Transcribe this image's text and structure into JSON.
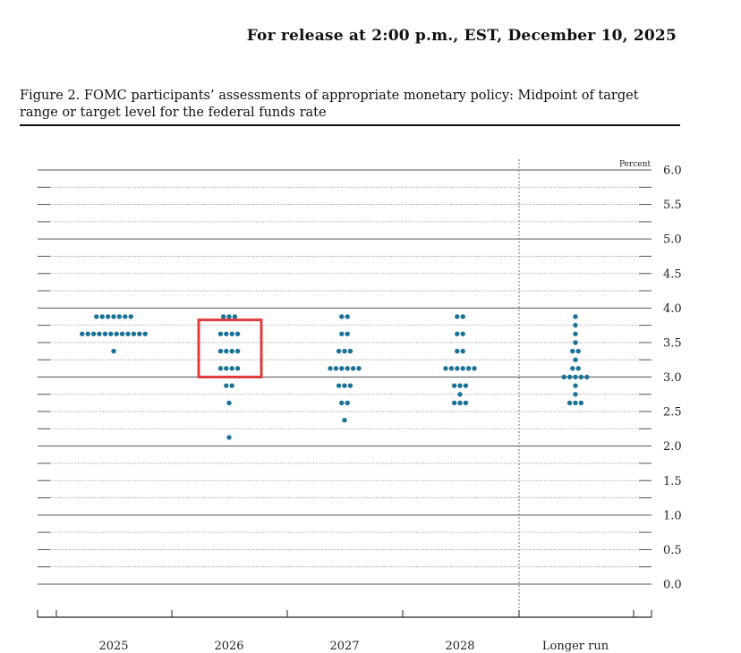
{
  "header": {
    "release": "For release at 2:00 p.m., EST, December 10, 2025"
  },
  "figure": {
    "title": "Figure 2. FOMC participants’ assessments of appropriate monetary policy: Midpoint of target range or target level for the federal funds rate"
  },
  "colors": {
    "dot": "#1a7296",
    "highlight": "#e03c3c",
    "grid": "#666666"
  },
  "chart_data": {
    "type": "scatter",
    "unit_label": "Percent",
    "ylim": [
      0,
      6.0
    ],
    "yticks": [
      "0.0",
      "0.5",
      "1.0",
      "1.5",
      "2.0",
      "2.5",
      "3.0",
      "3.5",
      "4.0",
      "4.5",
      "5.0",
      "5.5",
      "6.0"
    ],
    "categories": [
      "2025",
      "2026",
      "2027",
      "2028",
      "Longer run"
    ],
    "series": [
      {
        "points": [
          {
            "y": 3.875,
            "count": 7
          },
          {
            "y": 3.625,
            "count": 12
          },
          {
            "y": 3.375,
            "count": 1
          }
        ]
      },
      {
        "points": [
          {
            "y": 3.875,
            "count": 3
          },
          {
            "y": 3.625,
            "count": 4
          },
          {
            "y": 3.375,
            "count": 4
          },
          {
            "y": 3.125,
            "count": 4
          },
          {
            "y": 2.875,
            "count": 2
          },
          {
            "y": 2.625,
            "count": 1
          },
          {
            "y": 2.125,
            "count": 1
          }
        ]
      },
      {
        "points": [
          {
            "y": 3.875,
            "count": 2
          },
          {
            "y": 3.625,
            "count": 2
          },
          {
            "y": 3.375,
            "count": 3
          },
          {
            "y": 3.125,
            "count": 6
          },
          {
            "y": 2.875,
            "count": 3
          },
          {
            "y": 2.625,
            "count": 2
          },
          {
            "y": 2.375,
            "count": 1
          }
        ]
      },
      {
        "points": [
          {
            "y": 3.875,
            "count": 2
          },
          {
            "y": 3.625,
            "count": 2
          },
          {
            "y": 3.375,
            "count": 2
          },
          {
            "y": 3.125,
            "count": 6
          },
          {
            "y": 2.875,
            "count": 3
          },
          {
            "y": 2.75,
            "count": 1
          },
          {
            "y": 2.625,
            "count": 3
          }
        ]
      },
      {
        "points": [
          {
            "y": 3.875,
            "count": 1
          },
          {
            "y": 3.75,
            "count": 1
          },
          {
            "y": 3.625,
            "count": 1
          },
          {
            "y": 3.5,
            "count": 1
          },
          {
            "y": 3.375,
            "count": 2
          },
          {
            "y": 3.25,
            "count": 1
          },
          {
            "y": 3.125,
            "count": 2
          },
          {
            "y": 3.0,
            "count": 5
          },
          {
            "y": 2.875,
            "count": 1
          },
          {
            "y": 2.75,
            "count": 1
          },
          {
            "y": 2.625,
            "count": 3
          }
        ]
      }
    ],
    "highlight": {
      "category": "2026",
      "y_range": [
        3.0,
        3.75
      ]
    },
    "grid": true
  }
}
